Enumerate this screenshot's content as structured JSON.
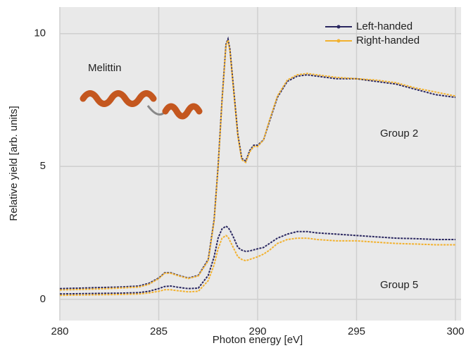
{
  "chart_data": {
    "type": "line",
    "x_label": "Photon energy [eV]",
    "y_label": "Relative yield [arb. units]",
    "annotations": [
      "Melittin",
      "Group 2",
      "Group 5"
    ],
    "x": [
      280,
      281,
      282,
      283,
      284,
      284.5,
      285,
      285.3,
      285.6,
      286,
      286.5,
      287,
      287.5,
      287.8,
      288,
      288.2,
      288.4,
      288.5,
      288.6,
      288.8,
      289,
      289.2,
      289.4,
      289.6,
      289.8,
      290,
      290.3,
      290.6,
      291,
      291.5,
      292,
      292.5,
      293,
      294,
      295,
      296,
      297,
      298,
      299,
      300
    ],
    "series": [
      {
        "name": "Left-handed",
        "color": "#2a2760",
        "values": [
          0.4,
          0.42,
          0.44,
          0.46,
          0.5,
          0.6,
          0.8,
          1.0,
          1.0,
          0.9,
          0.8,
          0.9,
          1.5,
          3.0,
          5.0,
          7.5,
          9.6,
          9.8,
          9.4,
          7.8,
          6.2,
          5.3,
          5.2,
          5.6,
          5.8,
          5.8,
          6.0,
          6.7,
          7.6,
          8.2,
          8.4,
          8.45,
          8.4,
          8.3,
          8.3,
          8.2,
          8.1,
          7.9,
          7.7,
          7.6
        ]
      },
      {
        "name": "Right-handed",
        "color": "#f2b12e",
        "values": [
          0.35,
          0.37,
          0.39,
          0.42,
          0.46,
          0.56,
          0.78,
          0.98,
          0.98,
          0.88,
          0.78,
          0.88,
          1.45,
          2.95,
          4.95,
          7.45,
          9.55,
          9.75,
          9.35,
          7.75,
          6.15,
          5.25,
          5.15,
          5.55,
          5.75,
          5.75,
          6.0,
          6.75,
          7.65,
          8.25,
          8.45,
          8.5,
          8.45,
          8.35,
          8.3,
          8.25,
          8.15,
          7.95,
          7.8,
          7.65
        ]
      },
      {
        "color": "#2a2760",
        "values": [
          0.2,
          0.21,
          0.22,
          0.23,
          0.25,
          0.3,
          0.4,
          0.48,
          0.5,
          0.45,
          0.4,
          0.42,
          0.9,
          1.6,
          2.3,
          2.65,
          2.75,
          2.7,
          2.6,
          2.3,
          1.95,
          1.85,
          1.8,
          1.82,
          1.86,
          1.9,
          1.95,
          2.1,
          2.3,
          2.45,
          2.55,
          2.55,
          2.5,
          2.45,
          2.4,
          2.35,
          2.3,
          2.28,
          2.25,
          2.25
        ]
      },
      {
        "color": "#f2b12e",
        "values": [
          0.15,
          0.16,
          0.17,
          0.18,
          0.2,
          0.24,
          0.3,
          0.36,
          0.36,
          0.32,
          0.28,
          0.3,
          0.7,
          1.3,
          1.9,
          2.3,
          2.4,
          2.35,
          2.2,
          1.9,
          1.6,
          1.5,
          1.45,
          1.5,
          1.55,
          1.6,
          1.7,
          1.85,
          2.1,
          2.25,
          2.3,
          2.3,
          2.25,
          2.2,
          2.2,
          2.15,
          2.1,
          2.08,
          2.05,
          2.05
        ]
      }
    ],
    "xlim": [
      280,
      300
    ],
    "ylim": [
      -0.8,
      11
    ],
    "xticks": [
      280,
      285,
      290,
      295,
      300
    ],
    "yticks": [
      0,
      5,
      10
    ],
    "grid": true
  }
}
